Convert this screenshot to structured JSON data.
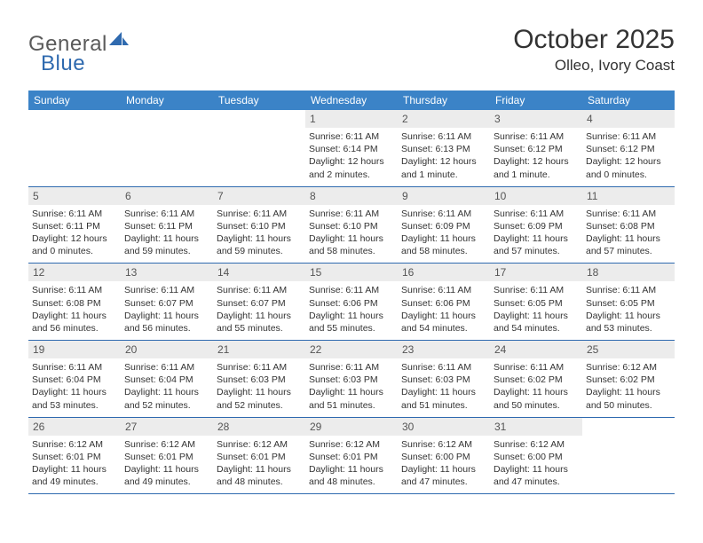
{
  "logo": {
    "text1": "General",
    "text2": "Blue",
    "accent_color": "#2f6aaf"
  },
  "title": "October 2025",
  "location": "Olleo, Ivory Coast",
  "header_bg": "#3b83c7",
  "daynum_bg": "#ececec",
  "border_color": "#2f6aaf",
  "day_names": [
    "Sunday",
    "Monday",
    "Tuesday",
    "Wednesday",
    "Thursday",
    "Friday",
    "Saturday"
  ],
  "weeks": [
    [
      {
        "day": "",
        "sunrise": "",
        "sunset": "",
        "daylight": ""
      },
      {
        "day": "",
        "sunrise": "",
        "sunset": "",
        "daylight": ""
      },
      {
        "day": "",
        "sunrise": "",
        "sunset": "",
        "daylight": ""
      },
      {
        "day": "1",
        "sunrise": "Sunrise: 6:11 AM",
        "sunset": "Sunset: 6:14 PM",
        "daylight": "Daylight: 12 hours and 2 minutes."
      },
      {
        "day": "2",
        "sunrise": "Sunrise: 6:11 AM",
        "sunset": "Sunset: 6:13 PM",
        "daylight": "Daylight: 12 hours and 1 minute."
      },
      {
        "day": "3",
        "sunrise": "Sunrise: 6:11 AM",
        "sunset": "Sunset: 6:12 PM",
        "daylight": "Daylight: 12 hours and 1 minute."
      },
      {
        "day": "4",
        "sunrise": "Sunrise: 6:11 AM",
        "sunset": "Sunset: 6:12 PM",
        "daylight": "Daylight: 12 hours and 0 minutes."
      }
    ],
    [
      {
        "day": "5",
        "sunrise": "Sunrise: 6:11 AM",
        "sunset": "Sunset: 6:11 PM",
        "daylight": "Daylight: 12 hours and 0 minutes."
      },
      {
        "day": "6",
        "sunrise": "Sunrise: 6:11 AM",
        "sunset": "Sunset: 6:11 PM",
        "daylight": "Daylight: 11 hours and 59 minutes."
      },
      {
        "day": "7",
        "sunrise": "Sunrise: 6:11 AM",
        "sunset": "Sunset: 6:10 PM",
        "daylight": "Daylight: 11 hours and 59 minutes."
      },
      {
        "day": "8",
        "sunrise": "Sunrise: 6:11 AM",
        "sunset": "Sunset: 6:10 PM",
        "daylight": "Daylight: 11 hours and 58 minutes."
      },
      {
        "day": "9",
        "sunrise": "Sunrise: 6:11 AM",
        "sunset": "Sunset: 6:09 PM",
        "daylight": "Daylight: 11 hours and 58 minutes."
      },
      {
        "day": "10",
        "sunrise": "Sunrise: 6:11 AM",
        "sunset": "Sunset: 6:09 PM",
        "daylight": "Daylight: 11 hours and 57 minutes."
      },
      {
        "day": "11",
        "sunrise": "Sunrise: 6:11 AM",
        "sunset": "Sunset: 6:08 PM",
        "daylight": "Daylight: 11 hours and 57 minutes."
      }
    ],
    [
      {
        "day": "12",
        "sunrise": "Sunrise: 6:11 AM",
        "sunset": "Sunset: 6:08 PM",
        "daylight": "Daylight: 11 hours and 56 minutes."
      },
      {
        "day": "13",
        "sunrise": "Sunrise: 6:11 AM",
        "sunset": "Sunset: 6:07 PM",
        "daylight": "Daylight: 11 hours and 56 minutes."
      },
      {
        "day": "14",
        "sunrise": "Sunrise: 6:11 AM",
        "sunset": "Sunset: 6:07 PM",
        "daylight": "Daylight: 11 hours and 55 minutes."
      },
      {
        "day": "15",
        "sunrise": "Sunrise: 6:11 AM",
        "sunset": "Sunset: 6:06 PM",
        "daylight": "Daylight: 11 hours and 55 minutes."
      },
      {
        "day": "16",
        "sunrise": "Sunrise: 6:11 AM",
        "sunset": "Sunset: 6:06 PM",
        "daylight": "Daylight: 11 hours and 54 minutes."
      },
      {
        "day": "17",
        "sunrise": "Sunrise: 6:11 AM",
        "sunset": "Sunset: 6:05 PM",
        "daylight": "Daylight: 11 hours and 54 minutes."
      },
      {
        "day": "18",
        "sunrise": "Sunrise: 6:11 AM",
        "sunset": "Sunset: 6:05 PM",
        "daylight": "Daylight: 11 hours and 53 minutes."
      }
    ],
    [
      {
        "day": "19",
        "sunrise": "Sunrise: 6:11 AM",
        "sunset": "Sunset: 6:04 PM",
        "daylight": "Daylight: 11 hours and 53 minutes."
      },
      {
        "day": "20",
        "sunrise": "Sunrise: 6:11 AM",
        "sunset": "Sunset: 6:04 PM",
        "daylight": "Daylight: 11 hours and 52 minutes."
      },
      {
        "day": "21",
        "sunrise": "Sunrise: 6:11 AM",
        "sunset": "Sunset: 6:03 PM",
        "daylight": "Daylight: 11 hours and 52 minutes."
      },
      {
        "day": "22",
        "sunrise": "Sunrise: 6:11 AM",
        "sunset": "Sunset: 6:03 PM",
        "daylight": "Daylight: 11 hours and 51 minutes."
      },
      {
        "day": "23",
        "sunrise": "Sunrise: 6:11 AM",
        "sunset": "Sunset: 6:03 PM",
        "daylight": "Daylight: 11 hours and 51 minutes."
      },
      {
        "day": "24",
        "sunrise": "Sunrise: 6:11 AM",
        "sunset": "Sunset: 6:02 PM",
        "daylight": "Daylight: 11 hours and 50 minutes."
      },
      {
        "day": "25",
        "sunrise": "Sunrise: 6:12 AM",
        "sunset": "Sunset: 6:02 PM",
        "daylight": "Daylight: 11 hours and 50 minutes."
      }
    ],
    [
      {
        "day": "26",
        "sunrise": "Sunrise: 6:12 AM",
        "sunset": "Sunset: 6:01 PM",
        "daylight": "Daylight: 11 hours and 49 minutes."
      },
      {
        "day": "27",
        "sunrise": "Sunrise: 6:12 AM",
        "sunset": "Sunset: 6:01 PM",
        "daylight": "Daylight: 11 hours and 49 minutes."
      },
      {
        "day": "28",
        "sunrise": "Sunrise: 6:12 AM",
        "sunset": "Sunset: 6:01 PM",
        "daylight": "Daylight: 11 hours and 48 minutes."
      },
      {
        "day": "29",
        "sunrise": "Sunrise: 6:12 AM",
        "sunset": "Sunset: 6:01 PM",
        "daylight": "Daylight: 11 hours and 48 minutes."
      },
      {
        "day": "30",
        "sunrise": "Sunrise: 6:12 AM",
        "sunset": "Sunset: 6:00 PM",
        "daylight": "Daylight: 11 hours and 47 minutes."
      },
      {
        "day": "31",
        "sunrise": "Sunrise: 6:12 AM",
        "sunset": "Sunset: 6:00 PM",
        "daylight": "Daylight: 11 hours and 47 minutes."
      },
      {
        "day": "",
        "sunrise": "",
        "sunset": "",
        "daylight": ""
      }
    ]
  ]
}
